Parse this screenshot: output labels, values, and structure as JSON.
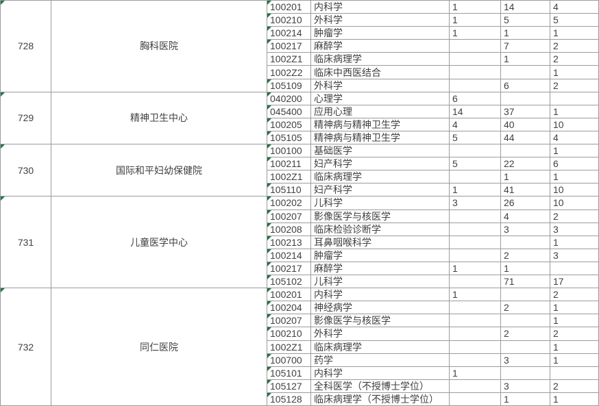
{
  "colors": {
    "grid_border": "#9b9b9b",
    "text": "#404040",
    "error_triangle": "#217346",
    "background": "#ffffff"
  },
  "spreadsheet": {
    "sections": [
      {
        "id": "728",
        "name": "胸科医院",
        "rows": [
          {
            "code": "100201",
            "subject": "内科学",
            "v1": "1",
            "v2": "14",
            "v3": "4",
            "err": true
          },
          {
            "code": "100210",
            "subject": "外科学",
            "v1": "1",
            "v2": "5",
            "v3": "5",
            "err": true
          },
          {
            "code": "100214",
            "subject": "肿瘤学",
            "v1": "1",
            "v2": "1",
            "v3": "1",
            "err": true
          },
          {
            "code": "100217",
            "subject": "麻醉学",
            "v1": "",
            "v2": "7",
            "v3": "2",
            "err": true
          },
          {
            "code": "1002Z1",
            "subject": "临床病理学",
            "v1": "",
            "v2": "1",
            "v3": "2",
            "err": false
          },
          {
            "code": "1002Z2",
            "subject": "临床中西医结合",
            "v1": "",
            "v2": "",
            "v3": "1",
            "err": false
          },
          {
            "code": "105109",
            "subject": "外科学",
            "v1": "",
            "v2": "6",
            "v3": "2",
            "err": true
          }
        ]
      },
      {
        "id": "729",
        "name": "精神卫生中心",
        "rows": [
          {
            "code": "040200",
            "subject": "心理学",
            "v1": "6",
            "v2": "",
            "v3": "",
            "err": true
          },
          {
            "code": "045400",
            "subject": "应用心理",
            "v1": "14",
            "v2": "37",
            "v3": "1",
            "err": true
          },
          {
            "code": "100205",
            "subject": "精神病与精神卫生学",
            "v1": "4",
            "v2": "40",
            "v3": "10",
            "err": true
          },
          {
            "code": "105105",
            "subject": "精神病与精神卫生学",
            "v1": "5",
            "v2": "44",
            "v3": "4",
            "err": true
          }
        ]
      },
      {
        "id": "730",
        "name": "国际和平妇幼保健院",
        "rows": [
          {
            "code": "100100",
            "subject": "基础医学",
            "v1": "",
            "v2": "",
            "v3": "1",
            "err": true
          },
          {
            "code": "100211",
            "subject": "妇产科学",
            "v1": "5",
            "v2": "22",
            "v3": "6",
            "err": true
          },
          {
            "code": "1002Z1",
            "subject": "临床病理学",
            "v1": "",
            "v2": "1",
            "v3": "1",
            "err": false
          },
          {
            "code": "105110",
            "subject": "妇产科学",
            "v1": "1",
            "v2": "41",
            "v3": "10",
            "err": true
          }
        ]
      },
      {
        "id": "731",
        "name": "儿童医学中心",
        "rows": [
          {
            "code": "100202",
            "subject": "儿科学",
            "v1": "3",
            "v2": "26",
            "v3": "10",
            "err": true
          },
          {
            "code": "100207",
            "subject": "影像医学与核医学",
            "v1": "",
            "v2": "4",
            "v3": "2",
            "err": true
          },
          {
            "code": "100208",
            "subject": "临床检验诊断学",
            "v1": "",
            "v2": "3",
            "v3": "3",
            "err": true
          },
          {
            "code": "100213",
            "subject": "耳鼻咽喉科学",
            "v1": "",
            "v2": "",
            "v3": "1",
            "err": true
          },
          {
            "code": "100214",
            "subject": "肿瘤学",
            "v1": "",
            "v2": "2",
            "v3": "3",
            "err": true
          },
          {
            "code": "100217",
            "subject": "麻醉学",
            "v1": "1",
            "v2": "1",
            "v3": "",
            "err": true
          },
          {
            "code": "105102",
            "subject": "儿科学",
            "v1": "",
            "v2": "71",
            "v3": "17",
            "err": true
          }
        ]
      },
      {
        "id": "732",
        "name": "同仁医院",
        "rows": [
          {
            "code": "100201",
            "subject": "内科学",
            "v1": "1",
            "v2": "",
            "v3": "2",
            "err": true
          },
          {
            "code": "100204",
            "subject": "神经病学",
            "v1": "",
            "v2": "2",
            "v3": "1",
            "err": true
          },
          {
            "code": "100207",
            "subject": "影像医学与核医学",
            "v1": "",
            "v2": "",
            "v3": "1",
            "err": true
          },
          {
            "code": "100210",
            "subject": "外科学",
            "v1": "",
            "v2": "2",
            "v3": "2",
            "err": true
          },
          {
            "code": "1002Z1",
            "subject": "临床病理学",
            "v1": "",
            "v2": "",
            "v3": "1",
            "err": false
          },
          {
            "code": "100700",
            "subject": "药学",
            "v1": "",
            "v2": "3",
            "v3": "1",
            "err": true
          },
          {
            "code": "105101",
            "subject": "内科学",
            "v1": "1",
            "v2": "",
            "v3": "",
            "err": true
          },
          {
            "code": "105127",
            "subject": "全科医学（不授博士学位）",
            "v1": "",
            "v2": "3",
            "v3": "2",
            "err": true
          },
          {
            "code": "105128",
            "subject": "临床病理学（不授博士学位）",
            "v1": "",
            "v2": "1",
            "v3": "1",
            "err": true
          }
        ]
      }
    ]
  }
}
